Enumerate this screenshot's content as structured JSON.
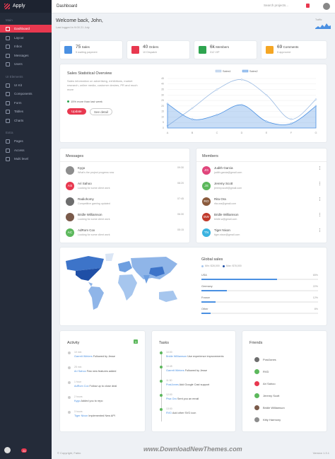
{
  "sidebar": {
    "brand": "Apply",
    "sections": [
      {
        "title": "Main",
        "items": [
          "Dashboard",
          "Layout",
          "Inbox",
          "Messages",
          "Users"
        ]
      },
      {
        "title": "UI Elements",
        "items": [
          "UI Kit",
          "Components",
          "Form",
          "Tables",
          "Charts"
        ]
      },
      {
        "title": "Extra",
        "items": [
          "Pages",
          "Access",
          "Multi level"
        ]
      }
    ],
    "badge": "24"
  },
  "topbar": {
    "title": "Dashboard",
    "search": "Search projects..."
  },
  "welcome": {
    "title": "Welcome back, John,",
    "subtitle": "Last logged in 9:00 21 July",
    "traffic_label": "Traffic"
  },
  "stats": [
    {
      "value": "75",
      "label": "Sales",
      "note": "5 waiting payment",
      "color": "#4a90e2"
    },
    {
      "value": "40",
      "label": "Orders",
      "note": "10 Dispatch",
      "color": "#e8384f"
    },
    {
      "value": "6k",
      "label": "Members",
      "note": "312 VIP",
      "color": "#2ea44f"
    },
    {
      "value": "69",
      "label": "Comments",
      "note": "5 approved",
      "color": "#f5a623"
    }
  ],
  "sales_overview": {
    "title": "Sales Statistical Overview",
    "text": "Sales information on advertising, exhibitions, market research, online media, customer desires, PR and much more",
    "trend": "15% more than last week",
    "buttons": [
      "Update",
      "See detail"
    ],
    "chart": {
      "type": "line",
      "categories": [
        "A",
        "B",
        "C",
        "D",
        "E",
        "F",
        "G"
      ],
      "series": [
        {
          "name": "Sales1",
          "color": "#9bbbe3",
          "values": [
            2,
            18,
            35,
            44,
            30,
            8,
            26
          ]
        },
        {
          "name": "Sales2",
          "color": "#4a90e2",
          "values": [
            22,
            8,
            12,
            21,
            6,
            4,
            20
          ],
          "area": true
        }
      ],
      "ylim": [
        0,
        45
      ],
      "yticks": [
        0,
        5,
        10,
        15,
        20,
        25,
        30,
        35,
        40,
        45
      ],
      "grid": true
    }
  },
  "messages": {
    "title": "Messages",
    "items": [
      {
        "name": "Kygo",
        "text": "What's the project progress now",
        "time": "09:30",
        "color": "#8d8d8d"
      },
      {
        "name": "Ari Sahoo",
        "text": "Looking for some client work",
        "time": "08:20",
        "color": "#e8384f",
        "initials": "AS"
      },
      {
        "name": "Radiohomy",
        "text": "Competitive gaming updated",
        "time": "07:45",
        "color": "#6d6d6d"
      },
      {
        "name": "Bridle Williamson",
        "text": "Looking for some client work",
        "time": "06:30",
        "color": "#7a5a4a"
      },
      {
        "name": "AdRom Cox",
        "text": "Looking for some client work",
        "time": "05:15",
        "color": "#5cb85c",
        "initials": "AC"
      }
    ]
  },
  "members": {
    "title": "Members",
    "items": [
      {
        "name": "Judith Garcia",
        "email": "judith.garcia@gmail.com",
        "color": "#e0457b",
        "initials": "JG"
      },
      {
        "name": "Jeremy Scott",
        "email": "jeremy.scott@gmail.com",
        "color": "#5cb85c",
        "initials": "JS"
      },
      {
        "name": "Rita Ora",
        "email": "rita.ora@gmail.com",
        "color": "#8a5a3c",
        "initials": "RO"
      },
      {
        "name": "Bridle Williamson",
        "email": "bridle.w@gmail.com",
        "color": "#c0392b",
        "initials": "BW"
      },
      {
        "name": "Tiger Nixon",
        "email": "tiger.nixon@gmail.com",
        "color": "#3bb3e0",
        "initials": "TN"
      }
    ]
  },
  "global_sales": {
    "title": "Global sales",
    "min": "Min: $28,000",
    "max": "Max: $78,000",
    "categories": [
      "USA",
      "Germany",
      "France",
      "Other"
    ],
    "values": [
      65,
      22,
      12,
      8
    ],
    "value_labels": [
      "65%",
      "22%",
      "12%",
      "8%"
    ],
    "color": "#4a90e2"
  },
  "activity": {
    "title": "Activity",
    "badge": "3",
    "items": [
      {
        "time": "10 min",
        "name": "Garrett Winters",
        "text": "Followed by Jesse"
      },
      {
        "time": "25 min",
        "name": "Ari Sahoo",
        "text": "Few new features added"
      },
      {
        "time": "1 hour",
        "name": "AdRom Cox",
        "text": "Follow up to close deal"
      },
      {
        "time": "2 hours",
        "name": "Kygo",
        "text": "Added you to repo"
      },
      {
        "time": "3 hours",
        "name": "Tiger Nixon",
        "text": "Implemented New API"
      }
    ]
  },
  "tasks": {
    "title": "Tasks",
    "items": [
      {
        "time": "10:00",
        "name": "Bridle Williamson",
        "text": "Use experience improvements"
      },
      {
        "time": "10:45",
        "name": "Garrett Winters",
        "text": "Followed by Jesse"
      },
      {
        "time": "11:30",
        "name": "PostJones",
        "text": "Add Google Cast support"
      },
      {
        "time": "12:00",
        "name": "Pisa Ora",
        "text": "Sent you an email"
      },
      {
        "time": "13:00",
        "name": "RVD",
        "text": "Add other SVG icon"
      }
    ]
  },
  "friends": {
    "title": "Friends",
    "items": [
      {
        "name": "PostJones",
        "color": "#6d6d6d"
      },
      {
        "name": "RVD",
        "color": "#5cb85c"
      },
      {
        "name": "Ari Sahoo",
        "color": "#e8384f"
      },
      {
        "name": "Jeremy Scott",
        "color": "#5cb85c"
      },
      {
        "name": "Bridle Williamson",
        "color": "#7a5a4a"
      },
      {
        "name": "Kitty Harmony",
        "color": "#8d8d8d"
      }
    ]
  },
  "footer": {
    "copyright": "© Copyright, Fabio",
    "version": "Version 1.3.1",
    "watermark": "www.DownloadNewThemes.com"
  }
}
